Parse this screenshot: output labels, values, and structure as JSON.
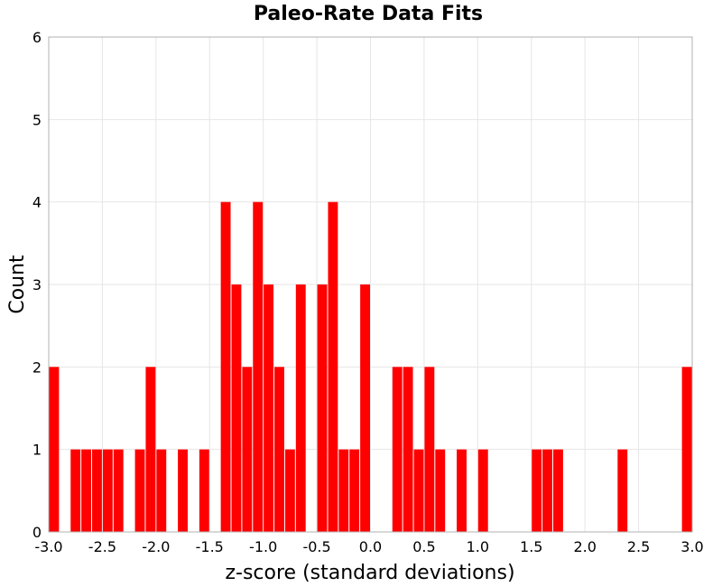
{
  "chart_data": {
    "type": "bar",
    "title": "Paleo-Rate Data Fits",
    "xlabel": "z-score (standard deviations)",
    "ylabel": "Count",
    "xlim": [
      -3.0,
      3.0
    ],
    "ylim": [
      0,
      6
    ],
    "bin_width": 0.1,
    "grid": true,
    "x_ticks": [
      "-3.0",
      "-2.5",
      "-2.0",
      "-1.5",
      "-1.0",
      "-0.5",
      "0.0",
      "0.5",
      "1.0",
      "1.5",
      "2.0",
      "2.5",
      "3.0"
    ],
    "y_ticks": [
      "0",
      "1",
      "2",
      "3",
      "4",
      "5",
      "6"
    ],
    "color": "#ff0000",
    "bins": [
      {
        "x": -2.95,
        "count": 2
      },
      {
        "x": -2.75,
        "count": 1
      },
      {
        "x": -2.65,
        "count": 1
      },
      {
        "x": -2.55,
        "count": 1
      },
      {
        "x": -2.45,
        "count": 1
      },
      {
        "x": -2.35,
        "count": 1
      },
      {
        "x": -2.15,
        "count": 1
      },
      {
        "x": -2.05,
        "count": 2
      },
      {
        "x": -1.95,
        "count": 1
      },
      {
        "x": -1.75,
        "count": 1
      },
      {
        "x": -1.55,
        "count": 1
      },
      {
        "x": -1.35,
        "count": 4
      },
      {
        "x": -1.25,
        "count": 3
      },
      {
        "x": -1.15,
        "count": 2
      },
      {
        "x": -1.05,
        "count": 4
      },
      {
        "x": -0.95,
        "count": 3
      },
      {
        "x": -0.85,
        "count": 2
      },
      {
        "x": -0.75,
        "count": 1
      },
      {
        "x": -0.65,
        "count": 3
      },
      {
        "x": -0.45,
        "count": 3
      },
      {
        "x": -0.35,
        "count": 4
      },
      {
        "x": -0.25,
        "count": 1
      },
      {
        "x": -0.15,
        "count": 1
      },
      {
        "x": -0.05,
        "count": 3
      },
      {
        "x": 0.25,
        "count": 2
      },
      {
        "x": 0.35,
        "count": 2
      },
      {
        "x": 0.45,
        "count": 1
      },
      {
        "x": 0.55,
        "count": 2
      },
      {
        "x": 0.65,
        "count": 1
      },
      {
        "x": 0.85,
        "count": 1
      },
      {
        "x": 1.05,
        "count": 1
      },
      {
        "x": 1.55,
        "count": 1
      },
      {
        "x": 1.65,
        "count": 1
      },
      {
        "x": 1.75,
        "count": 1
      },
      {
        "x": 2.35,
        "count": 1
      },
      {
        "x": 2.95,
        "count": 2
      }
    ]
  }
}
